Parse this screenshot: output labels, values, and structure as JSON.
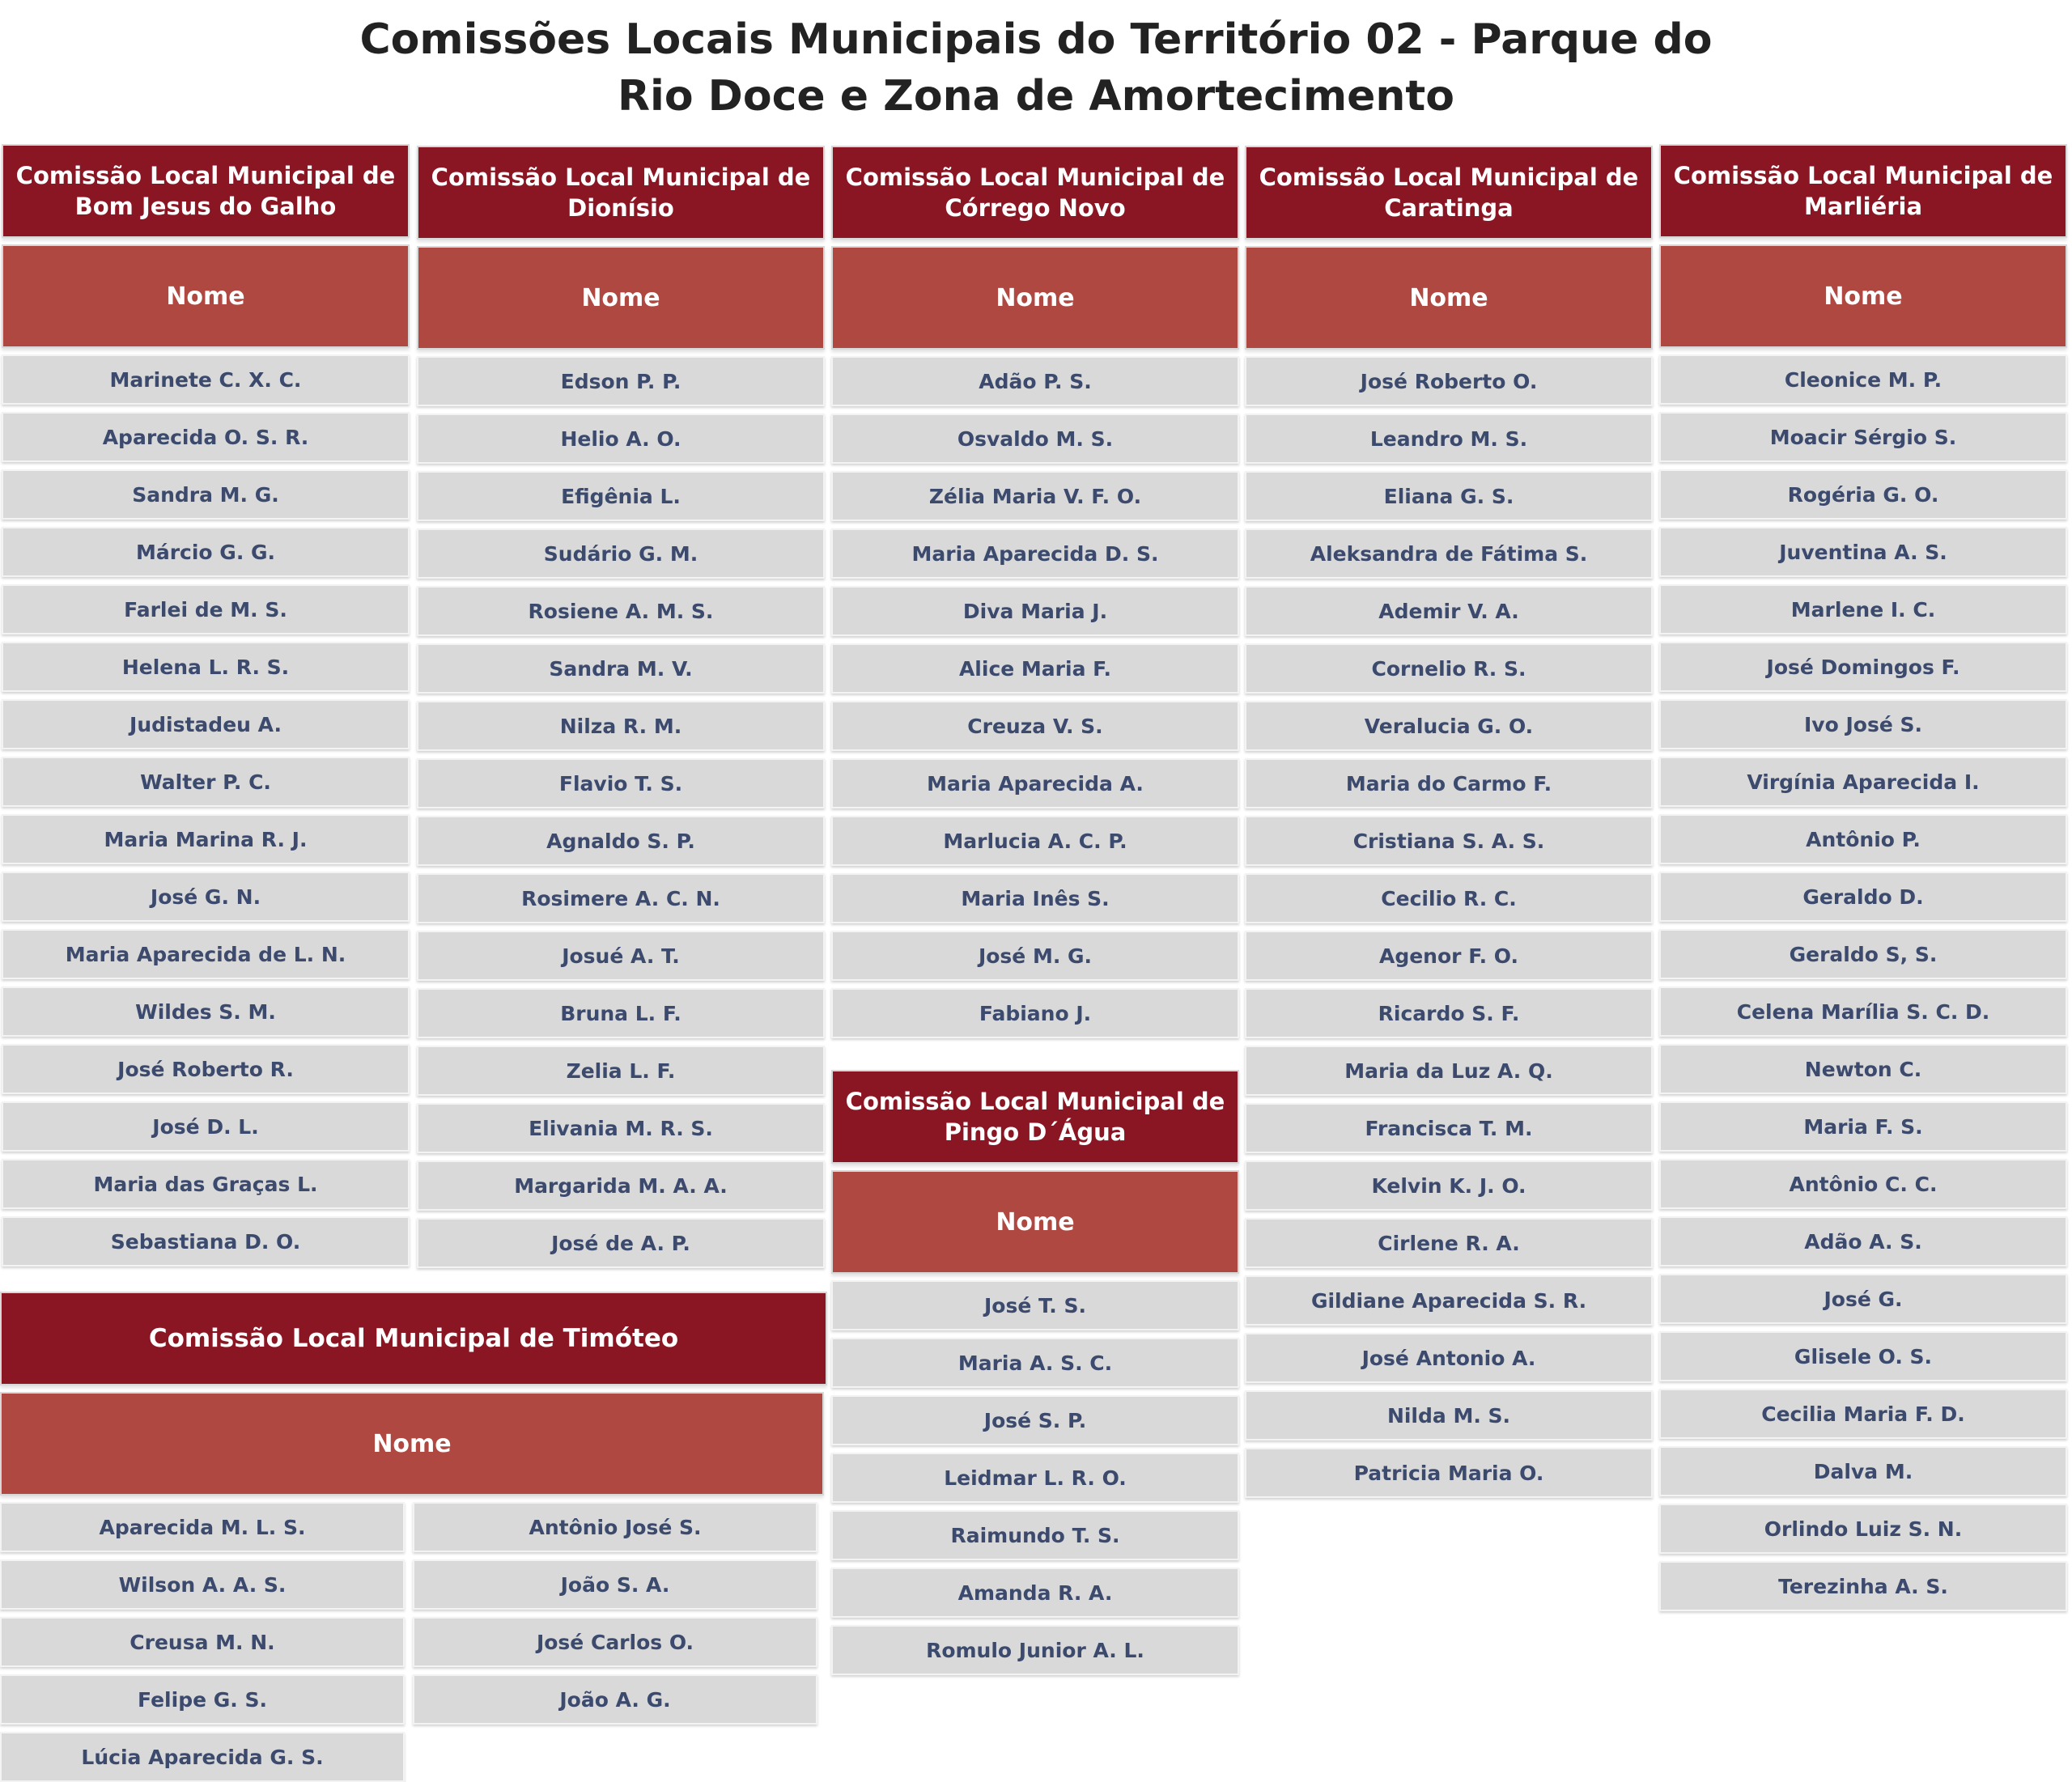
{
  "title_line1": "Comissões Locais Municipais do Território 02 - Parque do",
  "title_line2": "Rio Doce e Zona de Amortecimento",
  "nome_label": "Nome",
  "bom_jesus": {
    "title": "Comissão Local Municipal de Bom Jesus do Galho",
    "members": [
      "Marinete C. X. C.",
      "Aparecida O. S. R.",
      "Sandra M. G.",
      "Márcio G. G.",
      "Farlei de M. S.",
      "Helena L. R. S.",
      "Judistadeu A.",
      "Walter P. C.",
      "Maria Marina R. J.",
      "José G. N.",
      "Maria Aparecida de L. N.",
      "Wildes S. M.",
      "José Roberto R.",
      "José D. L.",
      "Maria das Graças L.",
      "Sebastiana D. O."
    ]
  },
  "dionisio": {
    "title": "Comissão Local Municipal de Dionísio",
    "members": [
      "Edson P. P.",
      "Helio A. O.",
      "Efigênia L.",
      "Sudário G. M.",
      "Rosiene A. M. S.",
      "Sandra M. V.",
      "Nilza R. M.",
      "Flavio T. S.",
      "Agnaldo S. P.",
      "Rosimere A. C. N.",
      "Josué A. T.",
      "Bruna L. F.",
      "Zelia L. F.",
      "Elivania M. R. S.",
      "Margarida M. A. A.",
      "José de A. P."
    ]
  },
  "corrego_novo": {
    "title": "Comissão Local Municipal de Córrego Novo",
    "members": [
      "Adão P. S.",
      "Osvaldo M. S.",
      "Zélia Maria V. F. O.",
      "Maria Aparecida D. S.",
      "Diva Maria J.",
      "Alice Maria F.",
      "Creuza V. S.",
      "Maria Aparecida A.",
      "Marlucia A. C. P.",
      "Maria Inês S.",
      "José M. G.",
      "Fabiano J."
    ]
  },
  "caratinga": {
    "title": "Comissão Local Municipal de Caratinga",
    "members": [
      "José Roberto O.",
      "Leandro M. S.",
      "Eliana G. S.",
      "Aleksandra de Fátima S.",
      "Ademir V. A.",
      "Cornelio R. S.",
      "Veralucia G. O.",
      "Maria do Carmo F.",
      "Cristiana S. A. S.",
      "Cecilio R. C.",
      "Agenor F. O.",
      "Ricardo S. F.",
      "Maria da Luz A. Q.",
      "Francisca T. M.",
      "Kelvin K. J. O.",
      "Cirlene R. A.",
      "Gildiane Aparecida S. R.",
      "José Antonio A.",
      "Nilda M. S.",
      "Patricia Maria O."
    ]
  },
  "marlieria": {
    "title": "Comissão Local Municipal de Marliéria",
    "members": [
      "Cleonice M. P.",
      "Moacir Sérgio S.",
      "Rogéria G. O.",
      "Juventina A. S.",
      "Marlene I. C.",
      "José Domingos F.",
      "Ivo José S.",
      "Virgínia Aparecida I.",
      "Antônio P.",
      "Geraldo D.",
      "Geraldo S, S.",
      "Celena Marília S. C. D.",
      "Newton C.",
      "Maria F. S.",
      "Antônio C. C.",
      "Adão A. S.",
      "José G.",
      "Glisele O. S.",
      "Cecilia Maria F. D.",
      "Dalva M.",
      "Orlindo Luiz S. N.",
      "Terezinha A. S."
    ]
  },
  "pingo_dagua": {
    "title": "Comissão Local Municipal de Pingo D´Água",
    "members": [
      "José T. S.",
      "Maria A. S. C.",
      "José S. P.",
      "Leidmar L. R. O.",
      "Raimundo T. S.",
      "Amanda R. A.",
      "Romulo Junior A. L."
    ]
  },
  "timoteo": {
    "title": "Comissão Local Municipal de Timóteo",
    "members": [
      "Aparecida M. L. S.",
      "Antônio José S.",
      "Wilson A. A. S.",
      "João S. A.",
      "Creusa M. N.",
      "José Carlos O.",
      "Felipe G. S.",
      "João A. G.",
      "Lúcia Aparecida G. S."
    ]
  },
  "colors": {
    "header": "#8b1623",
    "subheader": "#b04842",
    "row": "#d9d9d9",
    "row_text": "#3c4a6e"
  }
}
